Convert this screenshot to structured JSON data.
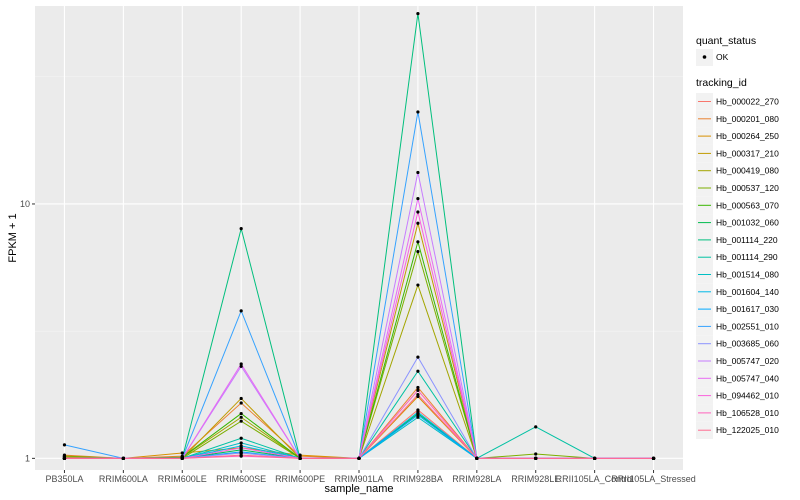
{
  "chart_data": {
    "type": "line",
    "xlabel": "sample_name",
    "ylabel": "FPKM + 1",
    "y_scale": "log10",
    "ylim": [
      0.9,
      60
    ],
    "y_ticks": [
      {
        "value": 1,
        "label": "1"
      },
      {
        "value": 10,
        "label": "10"
      }
    ],
    "categories": [
      "PB350LA",
      "RRIM600LA",
      "RRIM600LE",
      "RRIM600SE",
      "RRIM600PE",
      "RRIM901LA",
      "RRIM928BA",
      "RRIM928LA",
      "RRIM928LE",
      "RRII105LA_Control",
      "RRII105LA_Stressed"
    ],
    "legend_shape": {
      "title": "quant_status",
      "entries": [
        "OK"
      ]
    },
    "legend_color_title": "tracking_id",
    "series": [
      {
        "name": "Hb_000022_270",
        "color": "#F8766D",
        "values": [
          1.02,
          1.0,
          1.01,
          1.05,
          1.0,
          1.0,
          1.55,
          1.0,
          1.0,
          1.0,
          1.0
        ]
      },
      {
        "name": "Hb_000201_080",
        "color": "#EA8331",
        "values": [
          1.03,
          1.0,
          1.02,
          1.65,
          1.02,
          1.0,
          1.9,
          1.0,
          1.0,
          1.0,
          1.0
        ]
      },
      {
        "name": "Hb_000264_250",
        "color": "#D89000",
        "values": [
          1.02,
          1.0,
          1.05,
          1.1,
          1.03,
          1.0,
          1.75,
          1.0,
          1.0,
          1.0,
          1.0
        ]
      },
      {
        "name": "Hb_000317_210",
        "color": "#C09B00",
        "values": [
          1.01,
          1.0,
          1.0,
          1.72,
          1.0,
          1.0,
          8.4,
          1.0,
          1.0,
          1.0,
          1.0
        ]
      },
      {
        "name": "Hb_000419_080",
        "color": "#A3A500",
        "values": [
          1.0,
          1.0,
          1.01,
          1.45,
          1.0,
          1.0,
          4.8,
          1.0,
          1.0,
          1.0,
          1.0
        ]
      },
      {
        "name": "Hb_000537_120",
        "color": "#7CAE00",
        "values": [
          1.02,
          1.0,
          1.0,
          1.4,
          1.0,
          1.0,
          6.5,
          1.0,
          1.04,
          1.0,
          1.0
        ]
      },
      {
        "name": "Hb_000563_070",
        "color": "#39B600",
        "values": [
          1.0,
          1.0,
          1.01,
          1.5,
          1.0,
          1.0,
          7.1,
          1.0,
          1.0,
          1.0,
          1.0
        ]
      },
      {
        "name": "Hb_001032_060",
        "color": "#00BB4E",
        "values": [
          1.0,
          1.0,
          1.0,
          1.08,
          1.0,
          1.0,
          1.5,
          1.0,
          1.0,
          1.0,
          1.0
        ]
      },
      {
        "name": "Hb_001114_220",
        "color": "#00BF7D",
        "values": [
          1.0,
          1.0,
          1.0,
          8.0,
          1.0,
          1.0,
          56.0,
          1.0,
          1.0,
          1.0,
          1.0
        ]
      },
      {
        "name": "Hb_001114_290",
        "color": "#00C1A3",
        "values": [
          1.0,
          1.0,
          1.0,
          1.2,
          1.0,
          1.0,
          2.2,
          1.0,
          1.33,
          1.0,
          1.0
        ]
      },
      {
        "name": "Hb_001514_080",
        "color": "#00BFC4",
        "values": [
          1.0,
          1.0,
          1.0,
          1.15,
          1.0,
          1.0,
          1.45,
          1.0,
          1.0,
          1.0,
          1.0
        ]
      },
      {
        "name": "Hb_001604_140",
        "color": "#00B8E7",
        "values": [
          1.0,
          1.0,
          1.0,
          1.12,
          1.0,
          1.0,
          1.52,
          1.0,
          1.0,
          1.0,
          1.0
        ]
      },
      {
        "name": "Hb_001617_030",
        "color": "#00A9FF",
        "values": [
          1.0,
          1.0,
          1.0,
          1.06,
          1.0,
          1.0,
          1.48,
          1.0,
          1.0,
          1.0,
          1.0
        ]
      },
      {
        "name": "Hb_002551_010",
        "color": "#35A2FF",
        "values": [
          1.13,
          1.0,
          1.0,
          3.8,
          1.0,
          1.0,
          23.0,
          1.0,
          1.0,
          1.0,
          1.0
        ]
      },
      {
        "name": "Hb_003685_060",
        "color": "#8B93FF",
        "values": [
          1.0,
          1.0,
          1.0,
          1.05,
          1.0,
          1.0,
          2.5,
          1.0,
          1.0,
          1.0,
          1.0
        ]
      },
      {
        "name": "Hb_005747_020",
        "color": "#C77CFF",
        "values": [
          1.0,
          1.0,
          1.0,
          2.3,
          1.0,
          1.0,
          13.3,
          1.0,
          1.0,
          1.0,
          1.0
        ]
      },
      {
        "name": "Hb_005747_040",
        "color": "#E76BF3",
        "values": [
          1.0,
          1.0,
          1.0,
          2.35,
          1.0,
          1.0,
          10.5,
          1.0,
          1.0,
          1.0,
          1.0
        ]
      },
      {
        "name": "Hb_094462_010",
        "color": "#FA62DB",
        "values": [
          1.0,
          1.0,
          1.0,
          1.1,
          1.0,
          1.0,
          9.3,
          1.0,
          1.0,
          1.0,
          1.0
        ]
      },
      {
        "name": "Hb_106528_010",
        "color": "#FF62BC",
        "values": [
          1.0,
          1.0,
          1.0,
          1.02,
          1.0,
          1.0,
          1.85,
          1.0,
          1.0,
          1.0,
          1.0
        ]
      },
      {
        "name": "Hb_122025_010",
        "color": "#FF6C91",
        "values": [
          1.0,
          1.0,
          1.0,
          1.03,
          1.0,
          1.0,
          1.78,
          1.0,
          1.0,
          1.0,
          1.0
        ]
      }
    ]
  }
}
